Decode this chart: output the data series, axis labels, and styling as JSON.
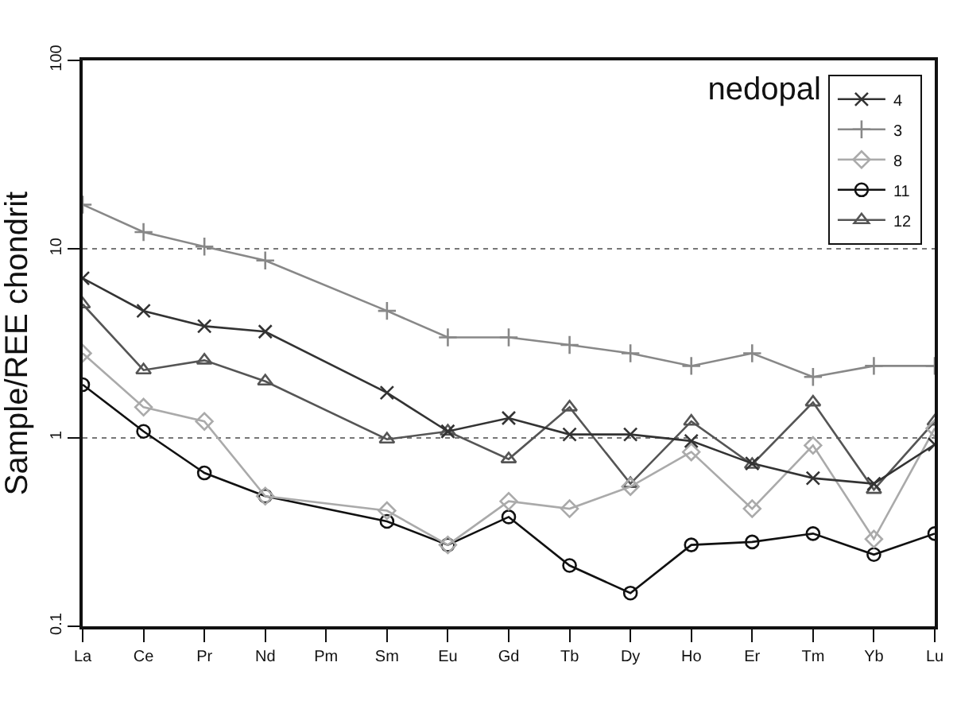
{
  "chart_data": {
    "type": "line",
    "title": "nedopal",
    "ylabel": "Sample/REE chondrit",
    "categories": [
      "La",
      "Ce",
      "Pr",
      "Nd",
      "Pm",
      "Sm",
      "Eu",
      "Gd",
      "Tb",
      "Dy",
      "Ho",
      "Er",
      "Tm",
      "Yb",
      "Lu"
    ],
    "series": [
      {
        "name": "4",
        "color": "#333333",
        "marker": "x",
        "values": [
          7.0,
          4.7,
          3.9,
          3.65,
          null,
          1.73,
          1.08,
          1.27,
          1.04,
          1.04,
          0.96,
          0.73,
          0.61,
          0.57,
          0.92
        ]
      },
      {
        "name": "3",
        "color": "#888888",
        "marker": "cross",
        "values": [
          17.2,
          12.3,
          10.3,
          8.7,
          null,
          4.7,
          3.4,
          3.4,
          3.1,
          2.8,
          2.4,
          2.8,
          2.1,
          2.4,
          2.4
        ]
      },
      {
        "name": "8",
        "color": "#aaaaaa",
        "marker": "diamond",
        "values": [
          2.8,
          1.45,
          1.22,
          0.49,
          null,
          0.41,
          0.27,
          0.46,
          0.42,
          0.55,
          0.84,
          0.42,
          0.91,
          0.29,
          1.12
        ]
      },
      {
        "name": "11",
        "color": "#111111",
        "marker": "circle",
        "values": [
          1.91,
          1.08,
          0.65,
          0.49,
          null,
          0.36,
          0.27,
          0.38,
          0.21,
          0.15,
          0.27,
          0.28,
          0.31,
          0.24,
          0.31
        ]
      },
      {
        "name": "12",
        "color": "#555555",
        "marker": "triangle",
        "values": [
          5.1,
          2.28,
          2.57,
          1.99,
          null,
          0.98,
          1.08,
          0.77,
          1.45,
          0.57,
          1.22,
          0.72,
          1.54,
          0.53,
          1.22
        ]
      }
    ],
    "log": "y",
    "ylim": [
      0.1,
      100
    ],
    "yticks": [
      0.1,
      1,
      10,
      100
    ],
    "grid": "y",
    "legend": "top right",
    "line_style": "solid"
  }
}
